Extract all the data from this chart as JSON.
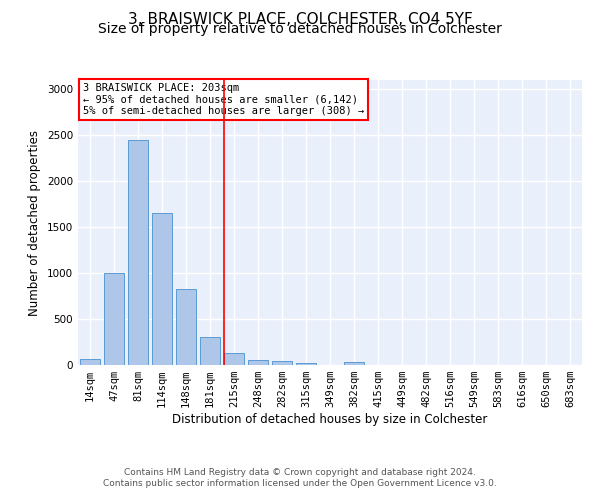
{
  "title1": "3, BRAISWICK PLACE, COLCHESTER, CO4 5YF",
  "title2": "Size of property relative to detached houses in Colchester",
  "xlabel": "Distribution of detached houses by size in Colchester",
  "ylabel": "Number of detached properties",
  "categories": [
    "14sqm",
    "47sqm",
    "81sqm",
    "114sqm",
    "148sqm",
    "181sqm",
    "215sqm",
    "248sqm",
    "282sqm",
    "315sqm",
    "349sqm",
    "382sqm",
    "415sqm",
    "449sqm",
    "482sqm",
    "516sqm",
    "549sqm",
    "583sqm",
    "616sqm",
    "650sqm",
    "683sqm"
  ],
  "values": [
    60,
    1000,
    2450,
    1650,
    830,
    300,
    130,
    55,
    45,
    25,
    0,
    35,
    0,
    0,
    0,
    0,
    0,
    0,
    0,
    0,
    0
  ],
  "bar_color": "#aec6e8",
  "bar_edge_color": "#5b9bd5",
  "red_line_index": 6,
  "annotation_line1": "3 BRAISWICK PLACE: 203sqm",
  "annotation_line2": "← 95% of detached houses are smaller (6,142)",
  "annotation_line3": "5% of semi-detached houses are larger (308) →",
  "ylim": [
    0,
    3100
  ],
  "yticks": [
    0,
    500,
    1000,
    1500,
    2000,
    2500,
    3000
  ],
  "footer1": "Contains HM Land Registry data © Crown copyright and database right 2024.",
  "footer2": "Contains public sector information licensed under the Open Government Licence v3.0.",
  "bg_color": "#eaf0fb",
  "grid_color": "#ffffff",
  "title1_fontsize": 11,
  "title2_fontsize": 10,
  "axis_fontsize": 8.5,
  "tick_fontsize": 7.5,
  "footer_fontsize": 6.5
}
